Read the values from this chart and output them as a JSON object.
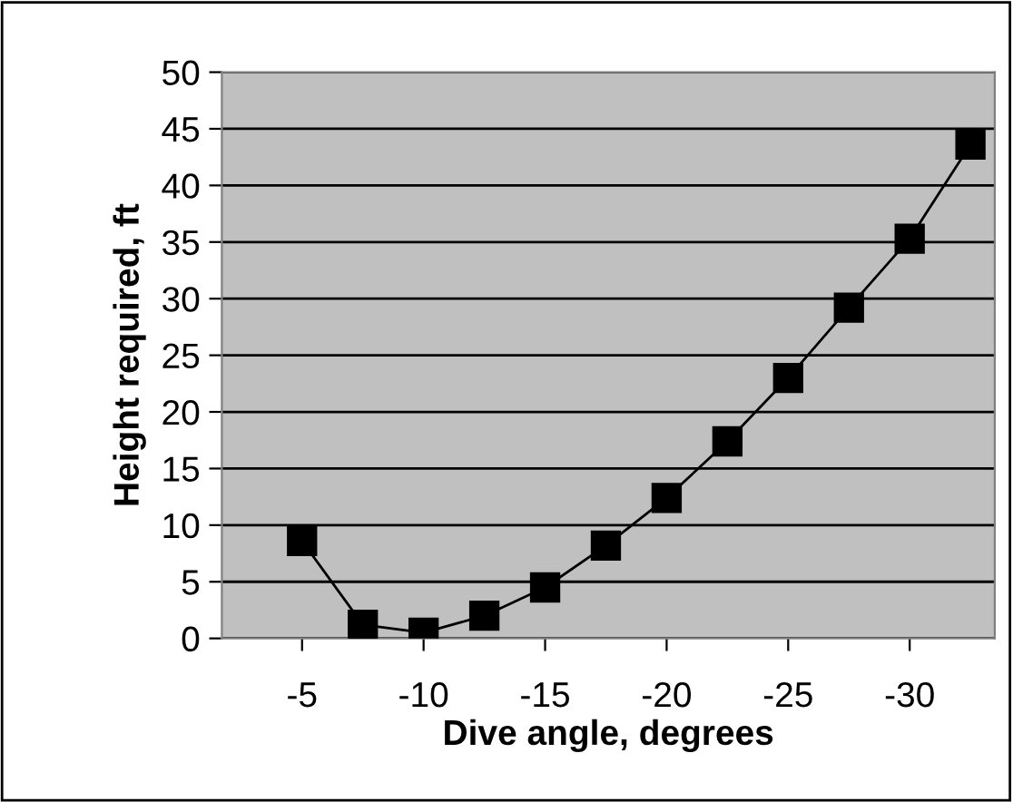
{
  "chart_data": {
    "type": "line",
    "xlabel": "Dive angle, degrees",
    "ylabel": "Height required, ft",
    "x": [
      -5,
      -7.5,
      -10,
      -12.5,
      -15,
      -17.5,
      -20,
      -22.5,
      -25,
      -27.5,
      -30,
      -32.5
    ],
    "series": [
      {
        "color": "#000000",
        "values": [
          8.6,
          1.2,
          0.5,
          2.0,
          4.5,
          8.2,
          12.4,
          17.4,
          23.0,
          29.2,
          35.3,
          43.6
        ]
      }
    ],
    "xlim": [
      -1.7,
      -33.5
    ],
    "xticks": [
      -5,
      -10,
      -15,
      -20,
      -25,
      -30
    ],
    "ylim": [
      0,
      50
    ],
    "yticks": [
      0,
      5,
      10,
      15,
      20,
      25,
      30,
      35,
      40,
      45,
      50
    ],
    "grid": "y",
    "marker": "square",
    "line_style": "solid",
    "legend": false
  }
}
